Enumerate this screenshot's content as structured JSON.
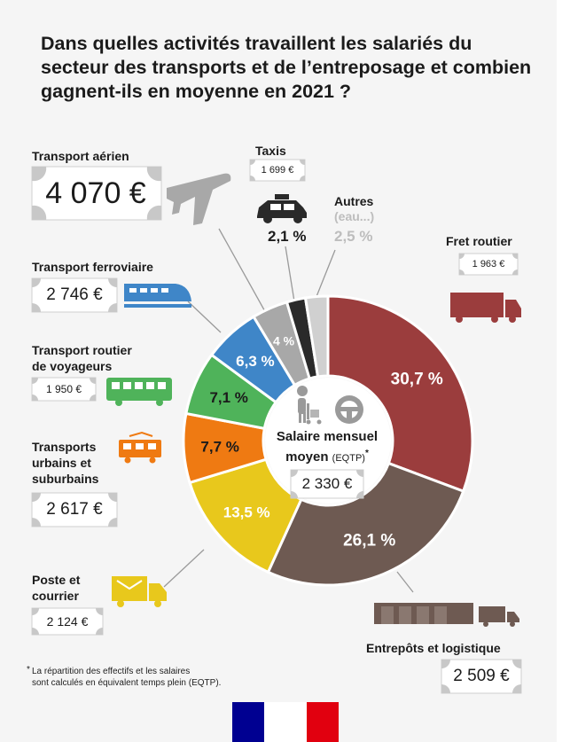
{
  "title": "Dans quelles activités travaillent les salariés du secteur des transports et de l’entreposage et combien gagnent-ils en moyenne en 2021 ?",
  "center": {
    "label_line1": "Salaire mensuel",
    "label_line2": "moyen",
    "label_suffix": "(EQTP)",
    "asterisk": "*",
    "value": "2 330 €"
  },
  "footnote": {
    "line1": "La répartition des effectifs et les salaires",
    "line2": "sont calculés en équivalent temps plein (EQTP).",
    "marker": "*"
  },
  "labels": {
    "aerien": "Transport aérien",
    "taxis": "Taxis",
    "autres": "Autres",
    "autres_sub": "(eau...)",
    "fret": "Fret routier",
    "ferroviaire": "Transport ferroviaire",
    "voyageurs_l1": "Transport routier",
    "voyageurs_l2": "de voyageurs",
    "urbains_l1": "Transports",
    "urbains_l2": "urbains et",
    "urbains_l3": "suburbains",
    "poste_l1": "Poste et",
    "poste_l2": "courrier",
    "entrepots": "Entrepôts et logistique"
  },
  "salaries": {
    "aerien": "4 070 €",
    "taxis": "1 699 €",
    "fret": "1 963 €",
    "ferroviaire": "2 746 €",
    "voyageurs": "1 950 €",
    "urbains": "2 617 €",
    "poste": "2 124 €",
    "entrepots": "2 509 €"
  },
  "colors": {
    "fret": "#9b3d3d",
    "entrepots": "#6e5a52",
    "poste": "#e8c81c",
    "urbains": "#ef7a12",
    "voyageurs": "#4fb35a",
    "ferroviaire": "#3f86c8",
    "aerien": "#a8a8a8",
    "taxis": "#2a2a2a",
    "autres": "#d0d0d0"
  },
  "chart_data": {
    "type": "pie",
    "donut": true,
    "unit": "%",
    "slices": [
      {
        "name": "Fret routier",
        "value": 30.7,
        "label": "30,7 %",
        "salary": "1 963 €"
      },
      {
        "name": "Entrepôts et logistique",
        "value": 26.1,
        "label": "26,1 %",
        "salary": "2 509 €"
      },
      {
        "name": "Poste et courrier",
        "value": 13.5,
        "label": "13,5 %",
        "salary": "2 124 €"
      },
      {
        "name": "Transports urbains et suburbains",
        "value": 7.7,
        "label": "7,7 %",
        "salary": "2 617 €"
      },
      {
        "name": "Transport routier de voyageurs",
        "value": 7.1,
        "label": "7,1 %",
        "salary": "1 950 €"
      },
      {
        "name": "Transport ferroviaire",
        "value": 6.3,
        "label": "6,3 %",
        "salary": "2 746 €"
      },
      {
        "name": "Transport aérien",
        "value": 4,
        "label": "4 %",
        "salary": "4 070 €"
      },
      {
        "name": "Taxis",
        "value": 2.1,
        "label": "2,1 %",
        "salary": "1 699 €"
      },
      {
        "name": "Autres (eau...)",
        "value": 2.5,
        "label": "2,5 %",
        "salary": ""
      }
    ],
    "center_value": "2 330 €"
  }
}
